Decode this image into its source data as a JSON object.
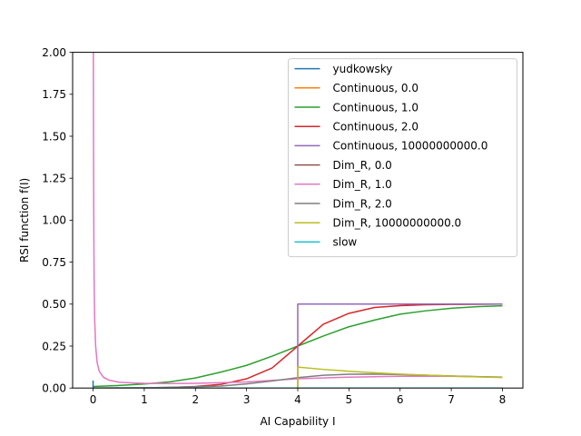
{
  "chart_data": {
    "type": "line",
    "title": "",
    "xlabel": "AI Capability I",
    "ylabel": "RSI function f(I)",
    "xlim": [
      -0.4,
      8.4
    ],
    "ylim": [
      0,
      2.0
    ],
    "xticks": [
      0,
      1,
      2,
      3,
      4,
      5,
      6,
      7,
      8
    ],
    "xtick_labels": [
      "0",
      "1",
      "2",
      "3",
      "4",
      "5",
      "6",
      "7",
      "8"
    ],
    "yticks": [
      0,
      0.25,
      0.5,
      0.75,
      1.0,
      1.25,
      1.5,
      1.75,
      2.0
    ],
    "ytick_labels": [
      "0.00",
      "0.25",
      "0.50",
      "0.75",
      "1.00",
      "1.25",
      "1.50",
      "1.75",
      "2.00"
    ],
    "grid": false,
    "legend_position": "top-right",
    "series": [
      {
        "name": "yudkowsky",
        "color": "#1f77b4",
        "x": [
          0,
          8
        ],
        "y": [
          0,
          0
        ]
      },
      {
        "name": "Continuous, 0.0",
        "color": "#ff7f0e",
        "x": [
          0,
          8
        ],
        "y": [
          0,
          0
        ]
      },
      {
        "name": "Continuous, 1.0",
        "color": "#2ca02c",
        "x": [
          0,
          0.5,
          1,
          1.5,
          2,
          2.5,
          3,
          3.5,
          4,
          4.5,
          5,
          5.5,
          6,
          6.5,
          7,
          7.5,
          8
        ],
        "y": [
          0.009,
          0.015,
          0.024,
          0.037,
          0.06,
          0.095,
          0.135,
          0.19,
          0.25,
          0.31,
          0.365,
          0.405,
          0.44,
          0.46,
          0.475,
          0.485,
          0.49
        ]
      },
      {
        "name": "Continuous, 2.0",
        "color": "#d62728",
        "x": [
          0,
          0.5,
          1,
          1.5,
          2,
          2.5,
          3,
          3.5,
          4,
          4.5,
          5,
          5.5,
          6,
          6.5,
          7,
          7.5,
          8
        ],
        "y": [
          0.0002,
          0.0006,
          0.0012,
          0.0035,
          0.009,
          0.022,
          0.055,
          0.12,
          0.25,
          0.38,
          0.445,
          0.48,
          0.491,
          0.496,
          0.498,
          0.499,
          0.5
        ]
      },
      {
        "name": "Continuous, 10000000000.0",
        "color": "#9467bd",
        "x": [
          0,
          4,
          4,
          8
        ],
        "y": [
          0,
          0,
          0.5,
          0.5
        ]
      },
      {
        "name": "Dim_R, 0.0",
        "color": "#8c564b",
        "x": [
          0,
          8
        ],
        "y": [
          0,
          0
        ]
      },
      {
        "name": "Dim_R, 1.0",
        "color": "#e377c2",
        "x": [
          0.005,
          0.01,
          0.015,
          0.02,
          0.03,
          0.05,
          0.08,
          0.12,
          0.2,
          0.3,
          0.5,
          0.8,
          1,
          1.5,
          2,
          3,
          4,
          5,
          6,
          7,
          8
        ],
        "y": [
          2.0,
          1.3,
          0.9,
          0.65,
          0.42,
          0.25,
          0.15,
          0.1,
          0.065,
          0.048,
          0.035,
          0.03,
          0.028,
          0.027,
          0.028,
          0.036,
          0.055,
          0.065,
          0.07,
          0.07,
          0.065
        ]
      },
      {
        "name": "Dim_R, 2.0",
        "color": "#7f7f7f",
        "x": [
          0,
          0.5,
          1,
          1.5,
          2,
          2.5,
          3,
          3.5,
          4,
          4.5,
          5,
          5.5,
          6,
          6.5,
          7,
          7.5,
          8
        ],
        "y": [
          0.0,
          0.001,
          0.002,
          0.004,
          0.007,
          0.012,
          0.025,
          0.042,
          0.062,
          0.076,
          0.082,
          0.083,
          0.08,
          0.076,
          0.072,
          0.068,
          0.065
        ]
      },
      {
        "name": "Dim_R, 10000000000.0",
        "color": "#bcbd22",
        "x": [
          0,
          4,
          4,
          4.5,
          5,
          5.5,
          6,
          6.5,
          7,
          7.5,
          8
        ],
        "y": [
          0,
          0,
          0.125,
          0.111,
          0.1,
          0.091,
          0.083,
          0.077,
          0.071,
          0.067,
          0.0625
        ]
      },
      {
        "name": "slow",
        "color": "#17becf",
        "x": [
          0,
          8
        ],
        "y": [
          0,
          0
        ]
      }
    ]
  }
}
